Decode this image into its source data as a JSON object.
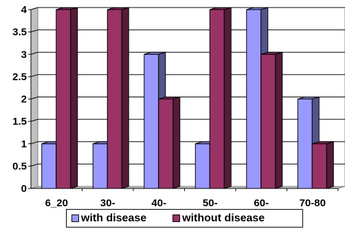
{
  "chart_data": {
    "type": "bar",
    "categories": [
      "6_20",
      "30-",
      "40-",
      "50-",
      "60-",
      "70-80"
    ],
    "series": [
      {
        "name": "with disease",
        "values": [
          1,
          1,
          3,
          1,
          4,
          2
        ],
        "color": "#9999ff"
      },
      {
        "name": "without disease",
        "values": [
          4,
          4,
          2,
          4,
          3,
          1
        ],
        "color": "#993366"
      }
    ],
    "yticks": [
      "0",
      "0.5",
      "1",
      "1.5",
      "2",
      "2.5",
      "3",
      "3.5",
      "4"
    ],
    "ylim": [
      0,
      4
    ],
    "grid": true,
    "legend_position": "bottom",
    "style": "3d-column",
    "title": "",
    "xlabel": "",
    "ylabel": ""
  }
}
